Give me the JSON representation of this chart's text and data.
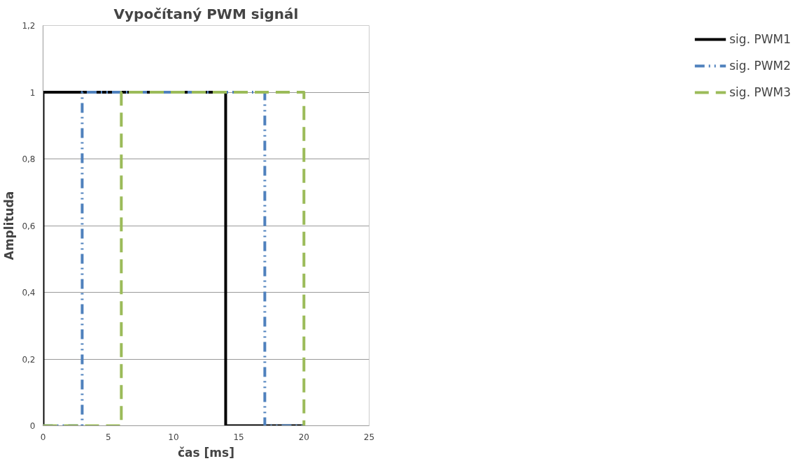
{
  "chart_data": {
    "type": "line",
    "title": "Vypočítaný PWM signál",
    "xlabel": "čas [ms]",
    "ylabel": "Amplituda",
    "xlim": [
      0,
      25
    ],
    "xticks": [
      0,
      5,
      10,
      15,
      20,
      25
    ],
    "ylim": [
      0,
      1.2
    ],
    "yticks": [
      0,
      {
        "value": 0.2,
        "label": "0,2"
      },
      {
        "value": 0.4,
        "label": "0,4"
      },
      {
        "value": 0.6,
        "label": "0,6"
      },
      {
        "value": 0.8,
        "label": "0,8"
      },
      1,
      {
        "value": 1.2,
        "label": "1,2"
      }
    ],
    "grid": "y",
    "legend": "top right",
    "marker": "none",
    "series": [
      {
        "name": "sig. PWM1",
        "color": "#000000",
        "line_style": "solid",
        "x": [
          0,
          0,
          14,
          14,
          20
        ],
        "values": [
          0,
          1,
          1,
          0,
          0
        ]
      },
      {
        "name": "sig. PWM2",
        "color": "#4f81bd",
        "line_style": "dashdot",
        "x": [
          0,
          3,
          3,
          17,
          17,
          20
        ],
        "values": [
          0,
          0,
          1,
          1,
          0,
          0
        ]
      },
      {
        "name": "sig. PWM3",
        "color": "#9bbb59",
        "line_style": "dashed",
        "x": [
          0,
          6,
          6,
          20,
          20
        ],
        "values": [
          0,
          0,
          1,
          1,
          0
        ]
      }
    ]
  }
}
